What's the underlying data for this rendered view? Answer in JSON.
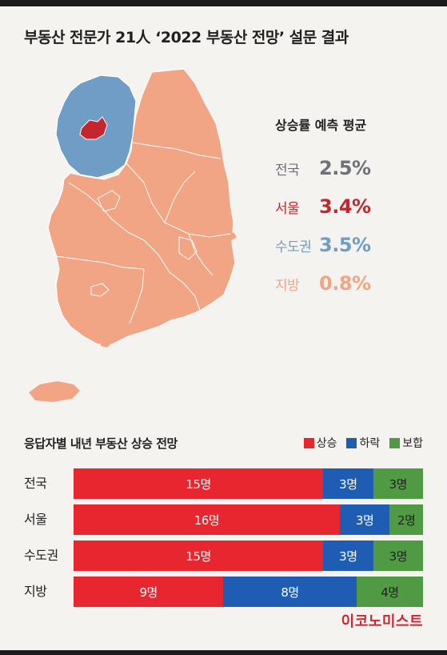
{
  "title": "부동산 전문가 21人 ‘2022 부동산 전망’ 설문 결과",
  "colors": {
    "seoul": "#c4262e",
    "capital": "#6f9dc6",
    "local": "#f2a585",
    "national": "#6e7278",
    "rise": "#e8262f",
    "fall": "#1f5db5",
    "hold": "#4f9a43",
    "brand": "#d3232f"
  },
  "map_icons": [
    "korea-map"
  ],
  "averages": {
    "title": "상승률 예측 평균",
    "items": [
      {
        "region": "전국",
        "value": "2.5%",
        "color": "#6e7278"
      },
      {
        "region": "서울",
        "value": "3.4%",
        "color": "#c4262e"
      },
      {
        "region": "수도권",
        "value": "3.5%",
        "color": "#6f9dc6"
      },
      {
        "region": "지방",
        "value": "0.8%",
        "color": "#f2a585"
      }
    ]
  },
  "chart_data": {
    "type": "bar",
    "orientation": "horizontal",
    "stacked": true,
    "title": "응답자별 내년 부동산 상승 전망",
    "categories": [
      "전국",
      "서울",
      "수도권",
      "지방"
    ],
    "series": [
      {
        "name": "상승",
        "values": [
          15,
          16,
          15,
          9
        ],
        "labels": [
          "15명",
          "16명",
          "15명",
          "9명"
        ],
        "color": "#e8262f"
      },
      {
        "name": "하락",
        "values": [
          3,
          3,
          3,
          8
        ],
        "labels": [
          "3명",
          "3명",
          "3명",
          "8명"
        ],
        "color": "#1f5db5"
      },
      {
        "name": "보합",
        "values": [
          3,
          2,
          3,
          4
        ],
        "labels": [
          "3명",
          "2명",
          "3명",
          "4명"
        ],
        "color": "#4f9a43"
      }
    ],
    "legend_position": "top-right"
  },
  "brand": "이코노미스트"
}
